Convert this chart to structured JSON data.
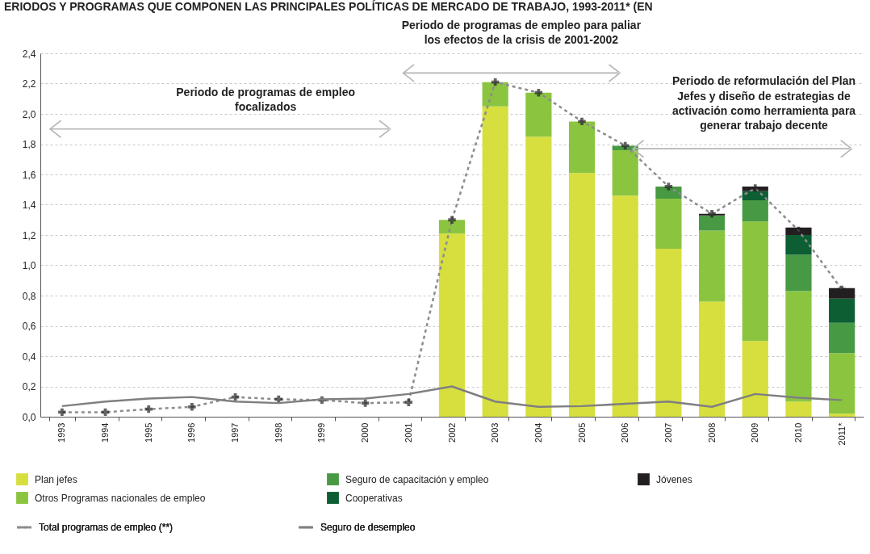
{
  "chart_data": {
    "type": "bar",
    "title": "ERIODOS Y PROGRAMAS QUE COMPONEN LAS PRINCIPALES POLÍTICAS DE MERCADO DE TRABAJO, 1993-2011* (EN",
    "categories": [
      "1993",
      "1994",
      "1995",
      "1996",
      "1997",
      "1998",
      "1999",
      "2000",
      "2001",
      "2002",
      "2003",
      "2004",
      "2005",
      "2006",
      "2007",
      "2008",
      "2009",
      "2010",
      "2011*"
    ],
    "stacked": true,
    "series": [
      {
        "name": "Plan jefes",
        "color": "#d7df3f",
        "values": [
          null,
          null,
          null,
          null,
          null,
          null,
          null,
          null,
          null,
          1.21,
          2.05,
          1.85,
          1.61,
          1.46,
          1.11,
          0.76,
          0.5,
          0.1,
          0.02
        ]
      },
      {
        "name": "Otros Programas nacionales de empleo",
        "color": "#8bc540",
        "values": [
          null,
          null,
          null,
          null,
          null,
          null,
          null,
          null,
          null,
          0.09,
          0.16,
          0.29,
          0.34,
          0.3,
          0.33,
          0.47,
          0.79,
          0.73,
          0.4
        ]
      },
      {
        "name": "Seguro de capacitación y empleo",
        "color": "#489944",
        "values": [
          null,
          null,
          null,
          null,
          null,
          null,
          null,
          null,
          null,
          null,
          null,
          null,
          null,
          0.03,
          0.08,
          0.1,
          0.14,
          0.24,
          0.2
        ]
      },
      {
        "name": "Cooperativas",
        "color": "#0d5e32",
        "values": [
          null,
          null,
          null,
          null,
          null,
          null,
          null,
          null,
          null,
          null,
          null,
          null,
          null,
          null,
          null,
          null,
          0.06,
          0.13,
          0.16
        ]
      },
      {
        "name": "Jóvenes",
        "color": "#231f20",
        "values": [
          null,
          null,
          null,
          null,
          null,
          null,
          null,
          null,
          null,
          null,
          null,
          null,
          null,
          null,
          null,
          0.01,
          0.03,
          0.05,
          0.07
        ]
      },
      {
        "name": "Total programas de empleo (**)",
        "type": "line",
        "color": "#8c8c8e",
        "line_style": "dashed",
        "marker": "cross",
        "values": [
          0.03,
          0.03,
          0.05,
          0.065,
          0.13,
          0.115,
          0.11,
          0.09,
          0.095,
          1.3,
          2.21,
          2.14,
          1.95,
          1.79,
          1.52,
          1.34,
          1.51,
          1.23,
          0.84
        ]
      },
      {
        "name": "Seguro de desempleo",
        "type": "line",
        "color": "#7f7f81",
        "line_style": "solid",
        "values": [
          0.07,
          0.1,
          0.12,
          0.13,
          0.1,
          0.09,
          0.115,
          0.12,
          0.15,
          0.2,
          0.1,
          0.065,
          0.07,
          0.085,
          0.1,
          0.065,
          0.15,
          0.125,
          0.11
        ]
      }
    ],
    "ylim": [
      0,
      2.4
    ],
    "yticks": [
      {
        "value": 0,
        "label": "0,0"
      },
      {
        "value": 0.2,
        "label": "0,2"
      },
      {
        "value": 0.4,
        "label": "0,4"
      },
      {
        "value": 0.6,
        "label": "0,6"
      },
      {
        "value": 0.8,
        "label": "0,8"
      },
      {
        "value": 1.0,
        "label": "1,0"
      },
      {
        "value": 1.2,
        "label": "1,2"
      },
      {
        "value": 1.4,
        "label": "1,4"
      },
      {
        "value": 1.6,
        "label": "1,6"
      },
      {
        "value": 1.8,
        "label": "1,8"
      },
      {
        "value": 2.0,
        "label": "2,0"
      },
      {
        "value": 2.2,
        "label": "2,2"
      },
      {
        "value": 2.4,
        "label": "2,4"
      }
    ],
    "grid": "y",
    "legend": "bottom",
    "annotations": [
      "Periodo de programas de empleo\nfocalizados",
      "Periodo de programas de empleo para paliar\nlos efectos de la crisis de 2001-2002",
      "Periodo de reformulación del Plan\nJefes y diseño de estrategias de\nactivación como herramienta para\ngenerar trabajo decente"
    ]
  }
}
